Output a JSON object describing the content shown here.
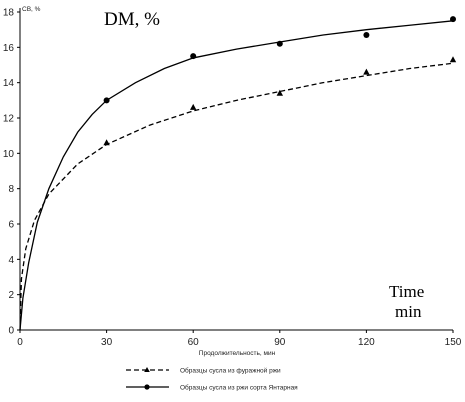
{
  "chart_data": {
    "type": "line",
    "corner_label": "СВ, %",
    "overlay_ylabel": "DM, %",
    "overlay_xlabel_line1": "Time",
    "overlay_xlabel_line2": "min",
    "xlabel": "Продолжительность, мин",
    "xlim": [
      0,
      150
    ],
    "ylim": [
      0,
      18
    ],
    "xticks": [
      0,
      30,
      60,
      90,
      120,
      150
    ],
    "yticks": [
      0,
      2,
      4,
      6,
      8,
      10,
      12,
      14,
      16,
      18
    ],
    "grid": false,
    "legend_position": "bottom",
    "series": [
      {
        "name": "Образцы сусла из фуражной ржи",
        "line_style": "dashed",
        "marker": "triangle",
        "color": "#000000",
        "points": [
          [
            30,
            10.6
          ],
          [
            60,
            12.6
          ],
          [
            90,
            13.4
          ],
          [
            120,
            14.6
          ],
          [
            150,
            15.3
          ]
        ],
        "trend": [
          [
            0,
            0
          ],
          [
            0.5,
            2.9
          ],
          [
            2,
            4.6
          ],
          [
            5,
            6.2
          ],
          [
            10,
            7.7
          ],
          [
            20,
            9.4
          ],
          [
            30,
            10.5
          ],
          [
            45,
            11.6
          ],
          [
            60,
            12.4
          ],
          [
            75,
            13.0
          ],
          [
            90,
            13.5
          ],
          [
            105,
            14.0
          ],
          [
            120,
            14.4
          ],
          [
            135,
            14.8
          ],
          [
            150,
            15.1
          ]
        ]
      },
      {
        "name": "Образцы сусла из ржи сорта Янтарная",
        "line_style": "solid",
        "marker": "circle",
        "color": "#000000",
        "points": [
          [
            30,
            13.0
          ],
          [
            60,
            15.5
          ],
          [
            90,
            16.2
          ],
          [
            120,
            16.7
          ],
          [
            150,
            17.6
          ]
        ],
        "trend": [
          [
            0,
            0
          ],
          [
            1,
            1.8
          ],
          [
            3,
            3.8
          ],
          [
            6,
            6.1
          ],
          [
            10,
            8.0
          ],
          [
            15,
            9.8
          ],
          [
            20,
            11.2
          ],
          [
            25,
            12.2
          ],
          [
            30,
            13.0
          ],
          [
            40,
            14.0
          ],
          [
            50,
            14.8
          ],
          [
            60,
            15.4
          ],
          [
            75,
            15.9
          ],
          [
            90,
            16.3
          ],
          [
            105,
            16.7
          ],
          [
            120,
            17.0
          ],
          [
            135,
            17.25
          ],
          [
            150,
            17.5
          ]
        ]
      }
    ]
  }
}
